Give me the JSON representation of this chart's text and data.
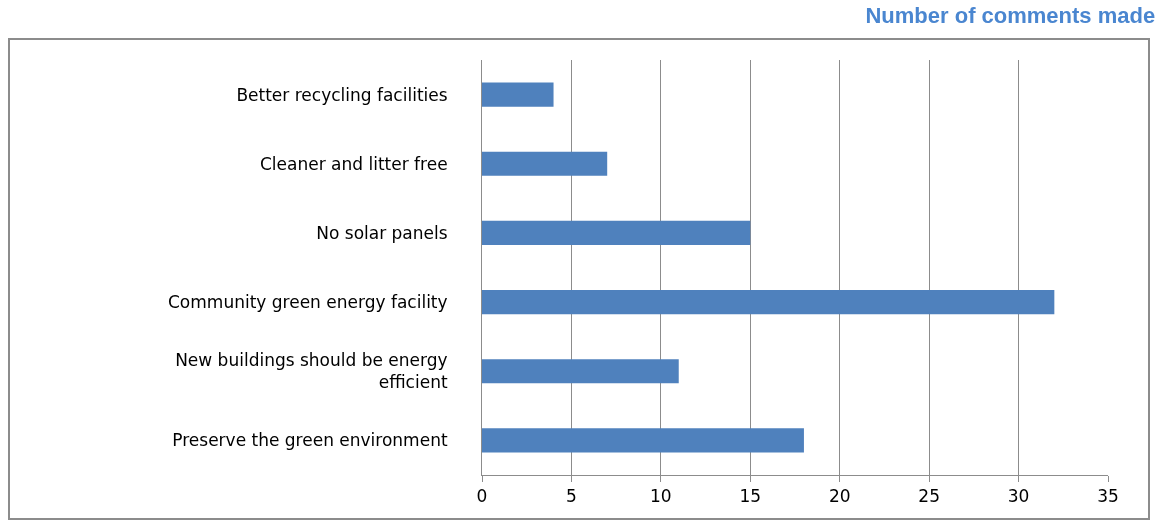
{
  "chart_data": {
    "type": "bar",
    "orientation": "horizontal",
    "title": "Number of comments made",
    "categories": [
      "Better recycling facilities",
      "Cleaner and litter free",
      "No solar panels",
      "Community green energy facility",
      "New buildings should be energy efficient",
      "Preserve the green environment"
    ],
    "values": [
      4,
      7,
      15,
      32,
      11,
      18
    ],
    "color": "#4f81bd",
    "xlim": [
      0,
      35
    ],
    "xticks": [
      0,
      5,
      10,
      15,
      20,
      25,
      30,
      35
    ],
    "grid": "x",
    "legend": false
  }
}
